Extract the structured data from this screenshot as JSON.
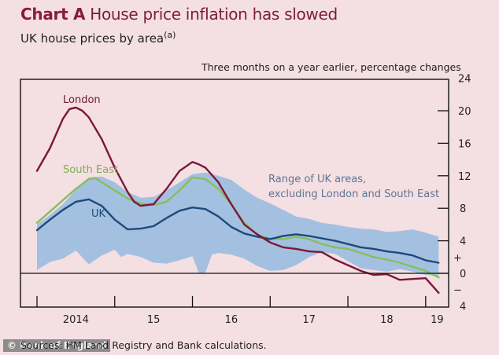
{
  "header": {
    "title_bold": "Chart A",
    "title_rest": " House price inflation has slowed",
    "subtitle": "UK house prices by area",
    "subtitle_note": "(a)",
    "units": "Three months on a year earlier, percentage changes"
  },
  "footer": {
    "source": "Sources: HM Land Registry and Bank calculations.",
    "watermark": "© Bank of England"
  },
  "colors": {
    "background": "#f4dfe3",
    "london": "#7a1838",
    "south_east": "#86bf5a",
    "uk": "#1d4a7a",
    "range": "#9bbce0",
    "title": "#8a1a42"
  },
  "chart_data": {
    "type": "line",
    "title": "Chart A House price inflation has slowed",
    "subtitle": "UK house prices by area(a)",
    "ylabel": "Three months on a year earlier, percentage changes",
    "xlabel": "",
    "ylim": [
      -4,
      24
    ],
    "yticks": [
      24,
      20,
      16,
      12,
      8,
      4,
      0,
      4
    ],
    "ytick_values": [
      24,
      20,
      16,
      12,
      8,
      4,
      0,
      -4
    ],
    "sign_markers": [
      "+",
      "−"
    ],
    "xticks": [
      "2014",
      "15",
      "16",
      "17",
      "18",
      "19"
    ],
    "x_unit": "months since Jan 2014",
    "xlim": [
      0,
      63
    ],
    "grid": false,
    "legend": "inline labels",
    "annotations": [
      {
        "text": "London",
        "series": "London"
      },
      {
        "text": "South East",
        "series": "South East"
      },
      {
        "text": "UK",
        "series": "UK"
      },
      {
        "text": "Range of UK areas,",
        "series": "Range"
      },
      {
        "text": "excluding London and South East",
        "series": "Range"
      }
    ],
    "band": {
      "name": "Range of UK areas, excluding London and South East",
      "x": [
        0,
        2,
        4,
        6,
        8,
        10,
        12,
        13,
        14,
        16,
        18,
        20,
        22,
        24,
        25,
        26,
        27,
        28,
        30,
        32,
        34,
        36,
        38,
        40,
        42,
        44,
        46,
        48,
        50,
        52,
        54,
        56,
        58,
        60,
        62
      ],
      "upper": [
        6.0,
        7.2,
        8.5,
        10.3,
        11.8,
        11.9,
        11.2,
        10.6,
        10.0,
        9.3,
        9.4,
        10.2,
        11.2,
        12.2,
        12.3,
        12.4,
        12.2,
        12.0,
        11.5,
        10.3,
        9.3,
        8.6,
        7.8,
        7.0,
        6.7,
        6.2,
        6.0,
        5.7,
        5.5,
        5.4,
        5.1,
        5.2,
        5.4,
        5.0,
        4.5
      ],
      "lower": [
        0.4,
        1.4,
        1.8,
        2.8,
        1.1,
        2.2,
        2.9,
        2.0,
        2.4,
        2.0,
        1.3,
        1.2,
        1.6,
        2.1,
        0.0,
        0.1,
        2.3,
        2.5,
        2.3,
        1.8,
        0.9,
        0.3,
        0.4,
        1.0,
        2.0,
        2.6,
        2.4,
        1.5,
        0.6,
        0.4,
        0.2,
        0.5,
        0.2,
        -0.2,
        -0.3
      ]
    },
    "series": [
      {
        "name": "London",
        "x": [
          0,
          2,
          4,
          5,
          6,
          7,
          8,
          10,
          12,
          14,
          15,
          16,
          18,
          20,
          22,
          24,
          25,
          26,
          28,
          30,
          32,
          34,
          36,
          38,
          40,
          42,
          44,
          46,
          48,
          50,
          52,
          54,
          56,
          58,
          60,
          62
        ],
        "values": [
          12.6,
          15.4,
          19.0,
          20.2,
          20.4,
          20.0,
          19.2,
          16.5,
          13.0,
          10.0,
          8.8,
          8.3,
          8.5,
          10.4,
          12.6,
          13.7,
          13.4,
          13.0,
          11.2,
          8.5,
          6.0,
          4.8,
          3.8,
          3.2,
          3.0,
          2.7,
          2.6,
          1.7,
          1.0,
          0.3,
          -0.2,
          -0.1,
          -0.8,
          -0.7,
          -0.6,
          -2.4
        ]
      },
      {
        "name": "South East",
        "x": [
          0,
          2,
          4,
          6,
          8,
          9,
          10,
          12,
          14,
          16,
          18,
          20,
          22,
          24,
          26,
          28,
          30,
          32,
          34,
          36,
          38,
          40,
          42,
          44,
          46,
          48,
          50,
          52,
          54,
          56,
          58,
          60,
          62
        ],
        "values": [
          6.2,
          7.6,
          9.0,
          10.4,
          11.6,
          11.7,
          11.2,
          10.2,
          9.2,
          8.6,
          8.4,
          8.8,
          10.2,
          11.8,
          11.6,
          10.4,
          8.5,
          6.2,
          4.7,
          4.3,
          4.2,
          4.5,
          4.2,
          3.6,
          3.2,
          3.0,
          2.5,
          2.0,
          1.7,
          1.3,
          0.8,
          0.3,
          -0.5
        ]
      },
      {
        "name": "UK",
        "x": [
          0,
          2,
          4,
          6,
          8,
          10,
          12,
          14,
          16,
          18,
          20,
          22,
          24,
          26,
          28,
          30,
          32,
          34,
          36,
          38,
          40,
          42,
          44,
          46,
          48,
          50,
          52,
          54,
          56,
          58,
          60,
          62
        ],
        "values": [
          5.3,
          6.6,
          7.8,
          8.8,
          9.1,
          8.3,
          6.6,
          5.4,
          5.5,
          5.8,
          6.8,
          7.7,
          8.1,
          7.9,
          7.0,
          5.7,
          4.9,
          4.5,
          4.2,
          4.6,
          4.8,
          4.6,
          4.3,
          4.0,
          3.6,
          3.2,
          3.0,
          2.7,
          2.5,
          2.2,
          1.6,
          1.3
        ]
      }
    ]
  }
}
